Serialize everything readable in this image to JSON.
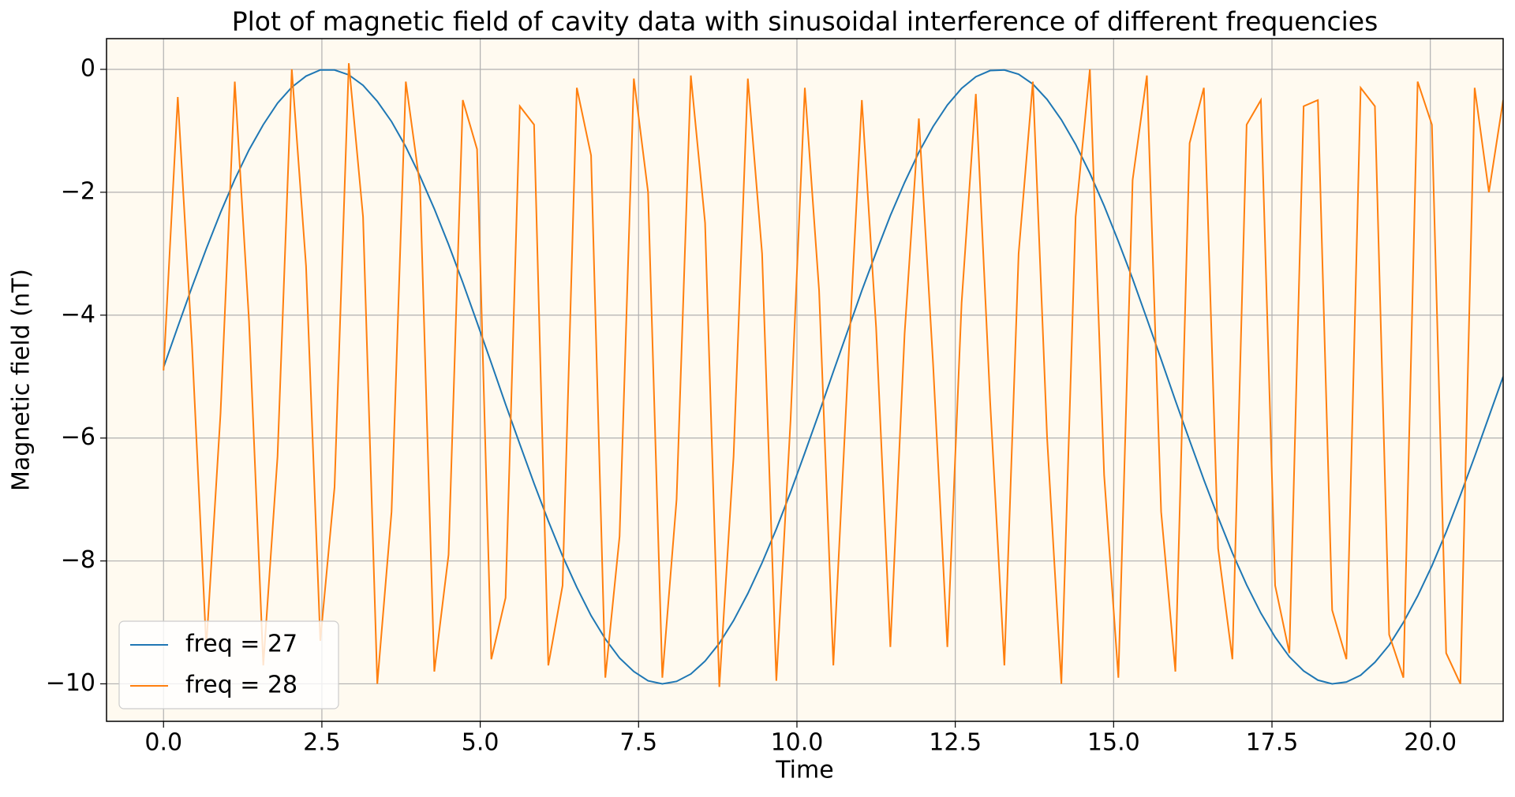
{
  "chart_data": {
    "type": "line",
    "title": "Plot of magnetic field of cavity data with sinusoidal interference of different frequencies",
    "xlabel": "Time",
    "ylabel": "Magnetic field (nT)",
    "x": [
      0,
      0.225,
      0.45,
      0.675,
      0.9,
      1.125,
      1.35,
      1.575,
      1.8,
      2.025,
      2.25,
      2.475,
      2.7,
      2.925,
      3.15,
      3.375,
      3.6,
      3.825,
      4.05,
      4.275,
      4.5,
      4.725,
      4.95,
      5.175,
      5.4,
      5.625,
      5.85,
      6.075,
      6.3,
      6.525,
      6.75,
      6.975,
      7.2,
      7.425,
      7.65,
      7.875,
      8.1,
      8.325,
      8.55,
      8.775,
      9,
      9.225,
      9.45,
      9.675,
      9.9,
      10.125,
      10.35,
      10.575,
      10.8,
      11.025,
      11.25,
      11.475,
      11.7,
      11.925,
      12.15,
      12.375,
      12.6,
      12.825,
      13.05,
      13.275,
      13.5,
      13.725,
      13.95,
      14.175,
      14.4,
      14.625,
      14.85,
      15.075,
      15.3,
      15.525,
      15.75,
      15.975,
      16.2,
      16.425,
      16.65,
      16.875,
      17.1,
      17.325,
      17.55,
      17.775,
      18,
      18.225,
      18.45,
      18.675,
      18.9,
      19.125,
      19.35,
      19.575,
      19.8,
      20.025,
      20.25,
      20.475,
      20.7,
      20.925,
      21.15
    ],
    "series": [
      {
        "name": "freq = 27",
        "color": "#1f77b4",
        "values": [
          -4.85,
          -4.19,
          -3.54,
          -2.92,
          -2.33,
          -1.79,
          -1.31,
          -0.9,
          -0.55,
          -0.29,
          -0.11,
          -0.01,
          -0.01,
          -0.09,
          -0.26,
          -0.52,
          -0.85,
          -1.26,
          -1.74,
          -2.27,
          -2.85,
          -3.47,
          -4.12,
          -4.78,
          -5.45,
          -6.1,
          -6.74,
          -7.35,
          -7.92,
          -8.43,
          -8.89,
          -9.27,
          -9.58,
          -9.8,
          -9.95,
          -10.0,
          -9.96,
          -9.84,
          -9.63,
          -9.34,
          -8.97,
          -8.53,
          -8.03,
          -7.48,
          -6.88,
          -6.24,
          -5.59,
          -4.92,
          -4.26,
          -3.6,
          -2.98,
          -2.38,
          -1.84,
          -1.35,
          -0.93,
          -0.58,
          -0.31,
          -0.12,
          -0.02,
          -0.01,
          -0.08,
          -0.24,
          -0.49,
          -0.82,
          -1.22,
          -1.69,
          -2.22,
          -2.8,
          -3.41,
          -4.06,
          -4.72,
          -5.39,
          -6.04,
          -6.68,
          -7.29,
          -7.87,
          -8.39,
          -8.85,
          -9.24,
          -9.56,
          -9.79,
          -9.94,
          -10.0,
          -9.97,
          -9.86,
          -9.65,
          -9.37,
          -9.0,
          -8.57,
          -8.08,
          -7.53,
          -6.93,
          -6.3,
          -5.65,
          -5.0
        ]
      },
      {
        "name": "freq = 28",
        "color": "#ff7f0e",
        "values": [
          -4.9,
          -0.45,
          -4.5,
          -9.4,
          -5.6,
          -0.2,
          -4.1,
          -9.7,
          -6.3,
          0.0,
          -3.2,
          -9.3,
          -6.8,
          0.1,
          -2.4,
          -10.0,
          -7.2,
          -0.2,
          -1.9,
          -9.8,
          -7.9,
          -0.5,
          -1.3,
          -9.6,
          -8.6,
          -0.6,
          -0.9,
          -9.7,
          -8.4,
          -0.3,
          -1.4,
          -9.9,
          -7.6,
          -0.15,
          -2.0,
          -9.9,
          -7.0,
          -0.1,
          -2.5,
          -10.05,
          -6.3,
          -0.15,
          -3.0,
          -9.95,
          -5.7,
          -0.3,
          -3.6,
          -9.7,
          -5.0,
          -0.5,
          -4.2,
          -9.4,
          -4.3,
          -0.8,
          -4.8,
          -9.4,
          -3.8,
          -0.4,
          -5.4,
          -9.7,
          -3.0,
          -0.2,
          -6.0,
          -10.0,
          -2.4,
          0.0,
          -6.6,
          -9.9,
          -1.8,
          -0.1,
          -7.2,
          -9.8,
          -1.2,
          -0.3,
          -7.8,
          -9.6,
          -0.9,
          -0.5,
          -8.4,
          -9.5,
          -0.6,
          -0.5,
          -8.8,
          -9.6,
          -0.3,
          -0.6,
          -9.2,
          -9.9,
          -0.2,
          -0.9,
          -9.5,
          -10.0,
          -0.3,
          -2.0,
          -0.5
        ]
      }
    ],
    "xlim": [
      -0.9,
      21.15
    ],
    "ylim": [
      -10.61,
      0.5
    ],
    "xticks": [
      {
        "value": 0,
        "label": "0.0"
      },
      2.5,
      {
        "value": 5,
        "label": "5.0"
      },
      7.5,
      {
        "value": 10,
        "label": "10.0"
      },
      12.5,
      {
        "value": 15,
        "label": "15.0"
      },
      17.5,
      {
        "value": 20,
        "label": "20.0"
      }
    ],
    "yticks": [
      {
        "value": -10,
        "label": "−10"
      },
      {
        "value": -8,
        "label": "−8"
      },
      {
        "value": -6,
        "label": "−6"
      },
      {
        "value": -4,
        "label": "−4"
      },
      {
        "value": -2,
        "label": "−2"
      },
      0
    ],
    "grid": true,
    "legend": "lower left",
    "background": "#fffaf0"
  }
}
